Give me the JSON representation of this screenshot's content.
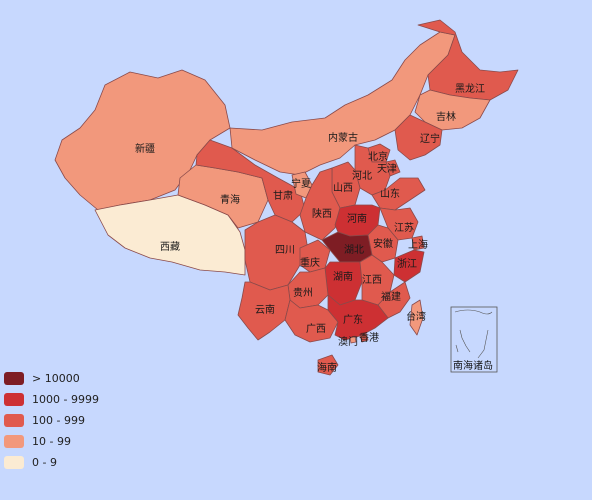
{
  "map": {
    "colors": {
      "gt10000": "#7e1d24",
      "r1000": "#cd3033",
      "r100": "#e05a4e",
      "r10": "#f2987c",
      "r0": "#fbebd3",
      "background": "#c7d8fe"
    },
    "legend": [
      {
        "label": "> 10000",
        "color": "#7e1d24"
      },
      {
        "label": "1000 - 9999",
        "color": "#cd3033"
      },
      {
        "label": "100 - 999",
        "color": "#e05a4e"
      },
      {
        "label": "10 - 99",
        "color": "#f2987c"
      },
      {
        "label": "0 - 9",
        "color": "#fbebd3"
      }
    ],
    "provinces": {
      "xinjiang": {
        "label": "新疆",
        "level": "10 - 99"
      },
      "xizang": {
        "label": "西藏",
        "level": "0 - 9"
      },
      "qinghai": {
        "label": "青海",
        "level": "10 - 99"
      },
      "gansu": {
        "label": "甘肃",
        "level": "100 - 999"
      },
      "neimenggu": {
        "label": "内蒙古",
        "level": "10 - 99"
      },
      "heilongjiang": {
        "label": "黑龙江",
        "level": "100 - 999"
      },
      "jilin": {
        "label": "吉林",
        "level": "10 - 99"
      },
      "liaoning": {
        "label": "辽宁",
        "level": "100 - 999"
      },
      "beijing": {
        "label": "北京",
        "level": "100 - 999"
      },
      "tianjin": {
        "label": "天津",
        "level": "100 - 999"
      },
      "hebei": {
        "label": "河北",
        "level": "100 - 999"
      },
      "ningxia": {
        "label": "宁夏",
        "level": "10 - 99"
      },
      "shanxi": {
        "label": "山西",
        "level": "100 - 999"
      },
      "shandong": {
        "label": "山东",
        "level": "100 - 999"
      },
      "shaanxi": {
        "label": "陕西",
        "level": "100 - 999"
      },
      "henan": {
        "label": "河南",
        "level": "1000 - 9999"
      },
      "jiangsu": {
        "label": "江苏",
        "level": "100 - 999"
      },
      "anhui": {
        "label": "安徽",
        "level": "100 - 999"
      },
      "shanghai": {
        "label": "上海",
        "level": "100 - 999"
      },
      "sichuan": {
        "label": "四川",
        "level": "100 - 999"
      },
      "chongqing": {
        "label": "重庆",
        "level": "100 - 999"
      },
      "hubei": {
        "label": "湖北",
        "level": "> 10000"
      },
      "zhejiang": {
        "label": "浙江",
        "level": "1000 - 9999"
      },
      "hunan": {
        "label": "湖南",
        "level": "1000 - 9999"
      },
      "jiangxi": {
        "label": "江西",
        "level": "100 - 999"
      },
      "guizhou": {
        "label": "贵州",
        "level": "100 - 999"
      },
      "yunnan": {
        "label": "云南",
        "level": "100 - 999"
      },
      "fujian": {
        "label": "福建",
        "level": "100 - 999"
      },
      "guangxi": {
        "label": "广西",
        "level": "100 - 999"
      },
      "guangdong": {
        "label": "广东",
        "level": "1000 - 9999"
      },
      "taiwan": {
        "label": "台湾",
        "level": "10 - 99"
      },
      "xianggang": {
        "label": "香港",
        "level": "100 - 999"
      },
      "aomen": {
        "label": "澳门",
        "level": "10 - 99"
      },
      "hainan": {
        "label": "海南",
        "level": "100 - 999"
      }
    },
    "inset_label": "南海诸岛"
  }
}
